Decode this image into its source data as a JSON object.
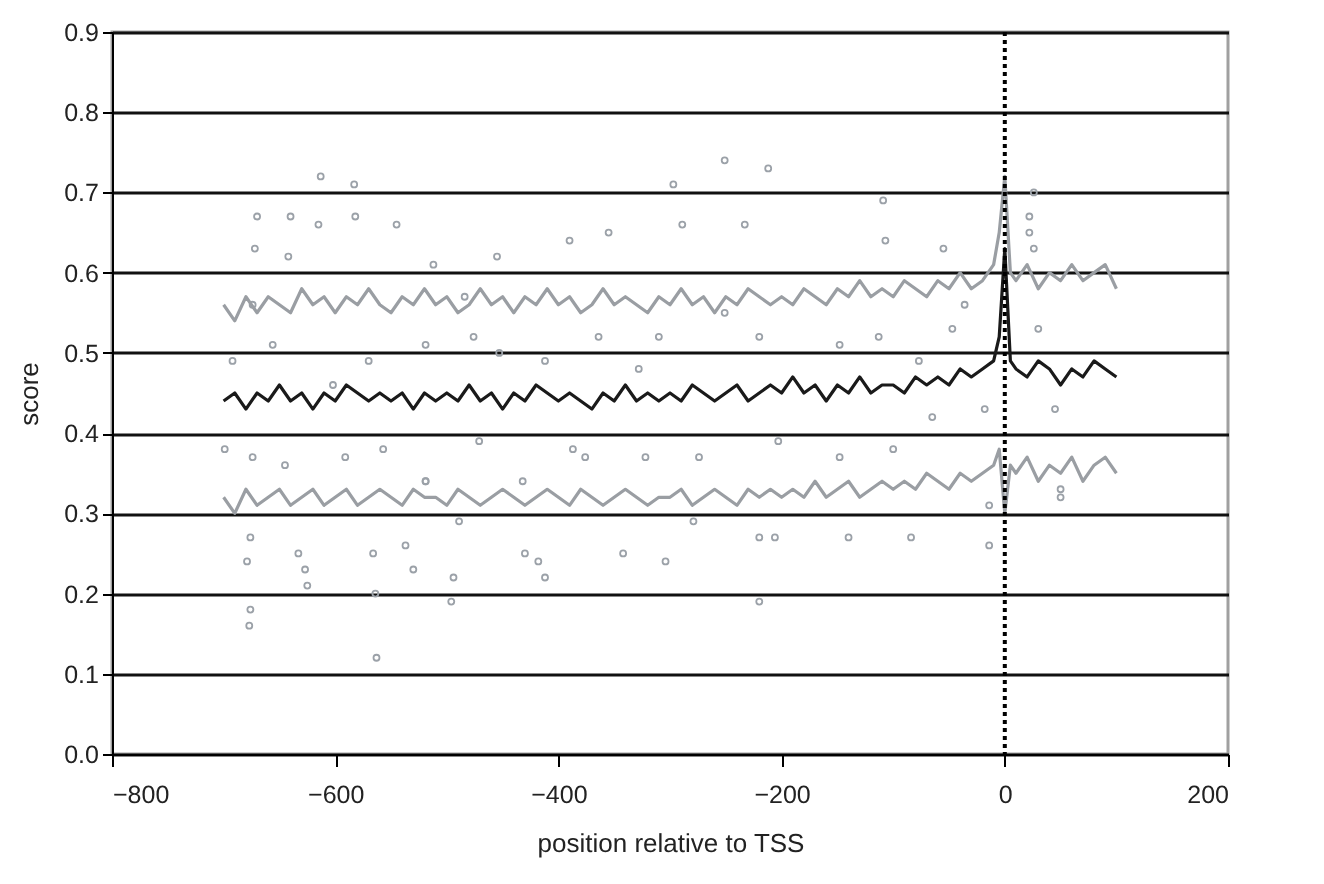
{
  "chart_data": {
    "type": "line",
    "xlabel": "position relative to TSS",
    "ylabel": "score",
    "xlim": [
      -800,
      200
    ],
    "xticks": [
      -800,
      -600,
      -400,
      -200,
      0,
      200
    ],
    "ylim": [
      0,
      0.9
    ],
    "yticks": [
      {
        "value": 0,
        "label": "0.0"
      },
      0.1,
      0.2,
      0.3,
      0.4,
      0.5,
      0.6,
      0.7,
      0.8,
      0.9
    ],
    "grid": "y",
    "legend": false,
    "ref_lines": [
      {
        "axis": "x",
        "value": 0,
        "color": "#000000",
        "line_style": "dotted"
      }
    ],
    "series": [
      {
        "type": "scatter",
        "color": "#9ba1a8",
        "marker": "circle",
        "x": [
          -613,
          -583,
          -670,
          -640,
          -672,
          -582,
          -545,
          -615,
          -642,
          -455,
          -390,
          -512,
          -251,
          -212,
          -297,
          -109,
          -233,
          -289,
          -355,
          -107,
          -55,
          26,
          22,
          26,
          22,
          -692,
          -656,
          -602,
          -570,
          -519,
          -476,
          -453,
          -412,
          -674,
          -484,
          -364,
          -310,
          -220,
          -148,
          -113,
          -47,
          -36,
          -251,
          -328,
          -77,
          30,
          -699,
          -674,
          -645,
          -591,
          -557,
          -519,
          -471,
          -432,
          -387,
          -376,
          -322,
          -274,
          -203,
          -148,
          -100,
          -65,
          -18,
          -679,
          -677,
          -676,
          -676,
          -625,
          -627,
          -633,
          -563,
          -564,
          -566,
          -530,
          -537,
          -496,
          -494,
          -412,
          -418,
          -430,
          -489,
          -519,
          -220,
          -342,
          -304,
          -220,
          -206,
          -140,
          -84,
          -14,
          -14,
          -279,
          45,
          50,
          50
        ],
        "values": [
          0.72,
          0.71,
          0.67,
          0.67,
          0.63,
          0.67,
          0.66,
          0.66,
          0.62,
          0.62,
          0.64,
          0.61,
          0.74,
          0.73,
          0.71,
          0.69,
          0.66,
          0.66,
          0.65,
          0.64,
          0.63,
          0.7,
          0.67,
          0.63,
          0.65,
          0.49,
          0.51,
          0.46,
          0.49,
          0.51,
          0.52,
          0.5,
          0.49,
          0.56,
          0.57,
          0.52,
          0.52,
          0.52,
          0.51,
          0.52,
          0.53,
          0.56,
          0.55,
          0.48,
          0.49,
          0.53,
          0.38,
          0.37,
          0.36,
          0.37,
          0.38,
          0.34,
          0.39,
          0.34,
          0.38,
          0.37,
          0.37,
          0.37,
          0.39,
          0.37,
          0.38,
          0.42,
          0.43,
          0.24,
          0.16,
          0.18,
          0.27,
          0.21,
          0.23,
          0.25,
          0.12,
          0.2,
          0.25,
          0.23,
          0.26,
          0.19,
          0.22,
          0.22,
          0.24,
          0.25,
          0.29,
          0.34,
          0.19,
          0.25,
          0.24,
          0.27,
          0.27,
          0.27,
          0.27,
          0.26,
          0.31,
          0.29,
          0.43,
          0.33,
          0.32
        ]
      },
      {
        "type": "line",
        "color": "#9a9ea3",
        "marker": "none",
        "x": [
          -700,
          -690,
          -680,
          -670,
          -660,
          -650,
          -640,
          -630,
          -620,
          -610,
          -600,
          -590,
          -580,
          -570,
          -560,
          -550,
          -540,
          -530,
          -520,
          -510,
          -500,
          -490,
          -480,
          -470,
          -460,
          -450,
          -440,
          -430,
          -420,
          -410,
          -400,
          -390,
          -380,
          -370,
          -360,
          -350,
          -340,
          -330,
          -320,
          -310,
          -300,
          -290,
          -280,
          -270,
          -260,
          -250,
          -240,
          -230,
          -220,
          -210,
          -200,
          -190,
          -180,
          -170,
          -160,
          -150,
          -140,
          -130,
          -120,
          -110,
          -100,
          -90,
          -80,
          -70,
          -60,
          -50,
          -40,
          -30,
          -20,
          -10,
          -5,
          0,
          5,
          10,
          20,
          30,
          40,
          50,
          60,
          70,
          80,
          90,
          100
        ],
        "values": [
          0.56,
          0.54,
          0.57,
          0.55,
          0.57,
          0.56,
          0.55,
          0.58,
          0.56,
          0.57,
          0.55,
          0.57,
          0.56,
          0.58,
          0.56,
          0.55,
          0.57,
          0.56,
          0.58,
          0.56,
          0.57,
          0.55,
          0.56,
          0.58,
          0.56,
          0.57,
          0.55,
          0.57,
          0.56,
          0.58,
          0.56,
          0.57,
          0.55,
          0.56,
          0.58,
          0.56,
          0.57,
          0.56,
          0.55,
          0.57,
          0.56,
          0.58,
          0.56,
          0.57,
          0.55,
          0.57,
          0.56,
          0.58,
          0.57,
          0.56,
          0.57,
          0.56,
          0.58,
          0.57,
          0.56,
          0.58,
          0.57,
          0.59,
          0.57,
          0.58,
          0.57,
          0.59,
          0.58,
          0.57,
          0.59,
          0.58,
          0.6,
          0.58,
          0.59,
          0.61,
          0.65,
          0.72,
          0.6,
          0.59,
          0.61,
          0.58,
          0.6,
          0.59,
          0.61,
          0.59,
          0.6,
          0.61,
          0.58
        ]
      },
      {
        "type": "line",
        "color": "#1a1a1a",
        "marker": "none",
        "x": [
          -700,
          -690,
          -680,
          -670,
          -660,
          -650,
          -640,
          -630,
          -620,
          -610,
          -600,
          -590,
          -580,
          -570,
          -560,
          -550,
          -540,
          -530,
          -520,
          -510,
          -500,
          -490,
          -480,
          -470,
          -460,
          -450,
          -440,
          -430,
          -420,
          -410,
          -400,
          -390,
          -380,
          -370,
          -360,
          -350,
          -340,
          -330,
          -320,
          -310,
          -300,
          -290,
          -280,
          -270,
          -260,
          -250,
          -240,
          -230,
          -220,
          -210,
          -200,
          -190,
          -180,
          -170,
          -160,
          -150,
          -140,
          -130,
          -120,
          -110,
          -100,
          -90,
          -80,
          -70,
          -60,
          -50,
          -40,
          -30,
          -20,
          -10,
          -5,
          0,
          5,
          10,
          20,
          30,
          40,
          50,
          60,
          70,
          80,
          90,
          100
        ],
        "values": [
          0.44,
          0.45,
          0.43,
          0.45,
          0.44,
          0.46,
          0.44,
          0.45,
          0.43,
          0.45,
          0.44,
          0.46,
          0.45,
          0.44,
          0.45,
          0.44,
          0.45,
          0.43,
          0.45,
          0.44,
          0.45,
          0.44,
          0.46,
          0.44,
          0.45,
          0.43,
          0.45,
          0.44,
          0.46,
          0.45,
          0.44,
          0.45,
          0.44,
          0.43,
          0.45,
          0.44,
          0.46,
          0.44,
          0.45,
          0.44,
          0.45,
          0.44,
          0.46,
          0.45,
          0.44,
          0.45,
          0.46,
          0.44,
          0.45,
          0.46,
          0.45,
          0.47,
          0.45,
          0.46,
          0.44,
          0.46,
          0.45,
          0.47,
          0.45,
          0.46,
          0.46,
          0.45,
          0.47,
          0.46,
          0.47,
          0.46,
          0.48,
          0.47,
          0.48,
          0.49,
          0.52,
          0.63,
          0.49,
          0.48,
          0.47,
          0.49,
          0.48,
          0.46,
          0.48,
          0.47,
          0.49,
          0.48,
          0.47
        ]
      },
      {
        "type": "line",
        "color": "#9a9ea3",
        "marker": "none",
        "x": [
          -700,
          -690,
          -680,
          -670,
          -660,
          -650,
          -640,
          -630,
          -620,
          -610,
          -600,
          -590,
          -580,
          -570,
          -560,
          -550,
          -540,
          -530,
          -520,
          -510,
          -500,
          -490,
          -480,
          -470,
          -460,
          -450,
          -440,
          -430,
          -420,
          -410,
          -400,
          -390,
          -380,
          -370,
          -360,
          -350,
          -340,
          -330,
          -320,
          -310,
          -300,
          -290,
          -280,
          -270,
          -260,
          -250,
          -240,
          -230,
          -220,
          -210,
          -200,
          -190,
          -180,
          -170,
          -160,
          -150,
          -140,
          -130,
          -120,
          -110,
          -100,
          -90,
          -80,
          -70,
          -60,
          -50,
          -40,
          -30,
          -20,
          -10,
          -5,
          0,
          5,
          10,
          20,
          30,
          40,
          50,
          60,
          70,
          80,
          90,
          100
        ],
        "values": [
          0.32,
          0.3,
          0.33,
          0.31,
          0.32,
          0.33,
          0.31,
          0.32,
          0.33,
          0.31,
          0.32,
          0.33,
          0.31,
          0.32,
          0.33,
          0.32,
          0.31,
          0.33,
          0.32,
          0.32,
          0.31,
          0.33,
          0.32,
          0.31,
          0.32,
          0.33,
          0.32,
          0.31,
          0.32,
          0.33,
          0.32,
          0.31,
          0.33,
          0.32,
          0.31,
          0.32,
          0.33,
          0.32,
          0.31,
          0.32,
          0.32,
          0.33,
          0.31,
          0.32,
          0.33,
          0.32,
          0.31,
          0.33,
          0.32,
          0.33,
          0.32,
          0.33,
          0.32,
          0.34,
          0.32,
          0.33,
          0.34,
          0.32,
          0.33,
          0.34,
          0.33,
          0.34,
          0.33,
          0.35,
          0.34,
          0.33,
          0.35,
          0.34,
          0.35,
          0.36,
          0.38,
          0.3,
          0.36,
          0.35,
          0.37,
          0.34,
          0.36,
          0.35,
          0.37,
          0.34,
          0.36,
          0.37,
          0.35
        ]
      }
    ]
  }
}
